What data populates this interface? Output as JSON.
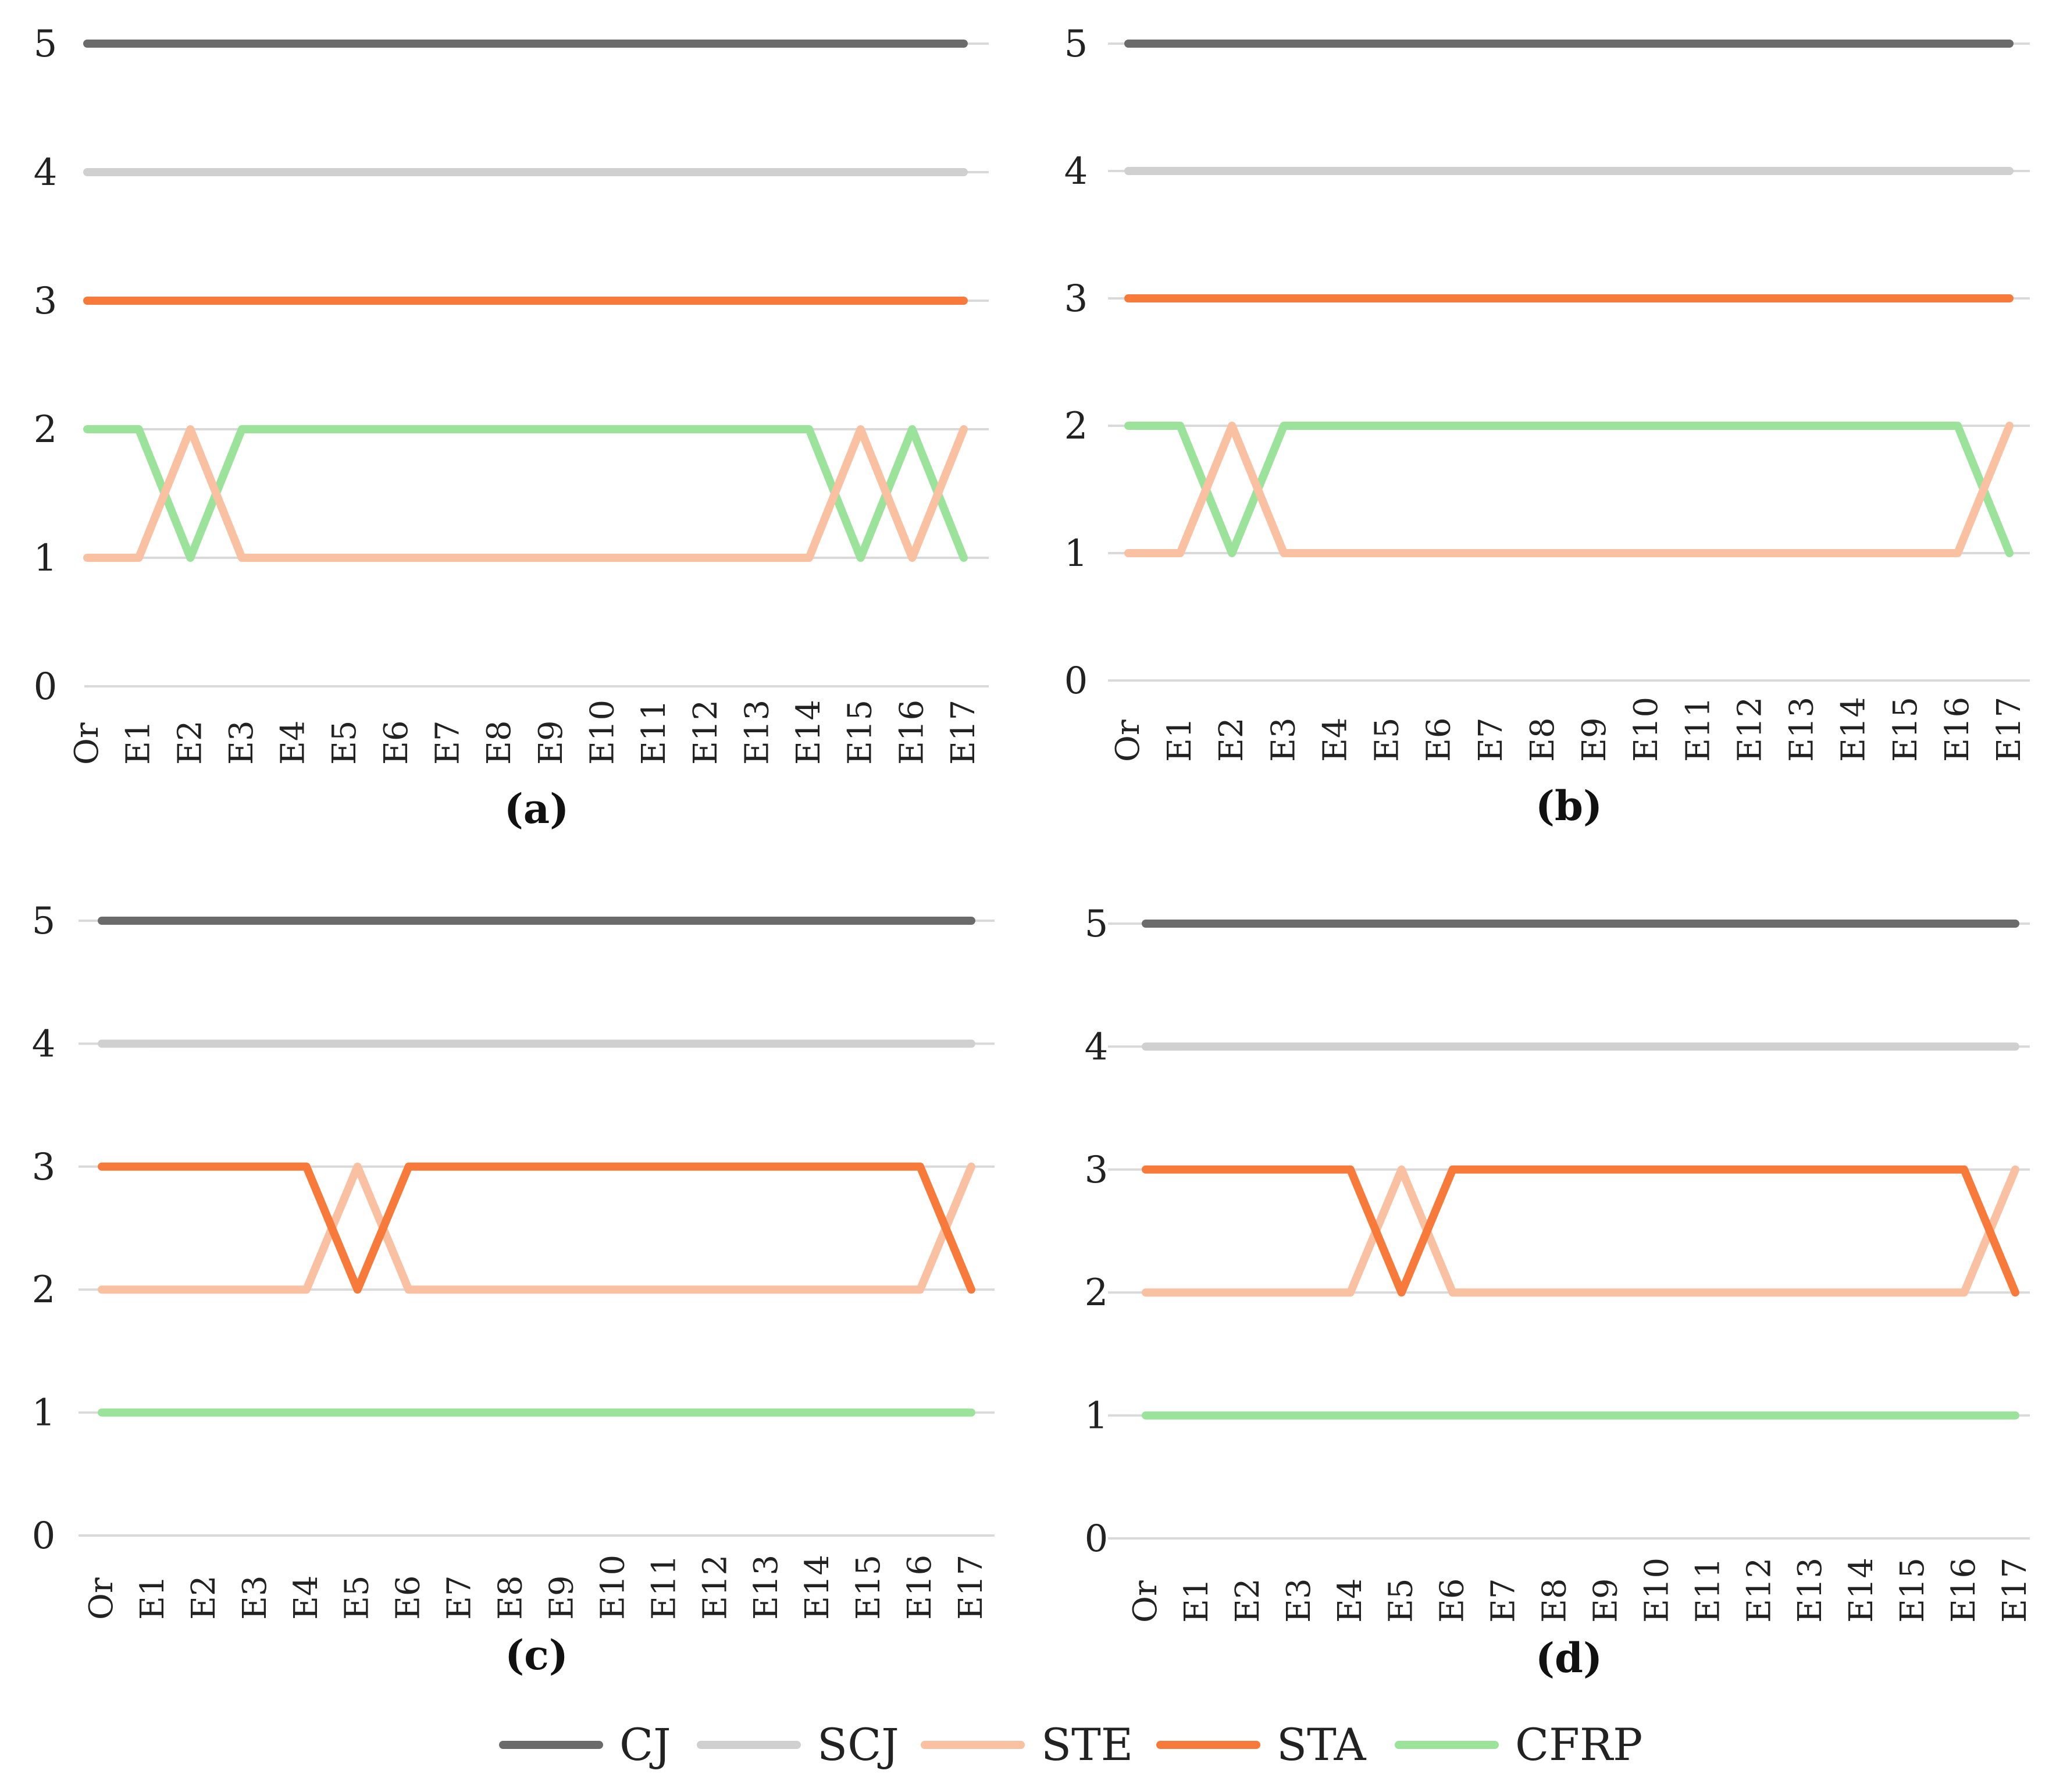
{
  "chart_data": [
    {
      "type": "line",
      "title": "",
      "caption": "(a)",
      "categories": [
        "Or",
        "E1",
        "E2",
        "E3",
        "E4",
        "E5",
        "E6",
        "E7",
        "E8",
        "E9",
        "E10",
        "E11",
        "E12",
        "E13",
        "E14",
        "E15",
        "E16",
        "E17"
      ],
      "ylim": [
        0,
        5
      ],
      "yticks": [
        0,
        1,
        2,
        3,
        4,
        5
      ],
      "grid": true,
      "series": [
        {
          "name": "CJ",
          "values": [
            5,
            5,
            5,
            5,
            5,
            5,
            5,
            5,
            5,
            5,
            5,
            5,
            5,
            5,
            5,
            5,
            5,
            5
          ]
        },
        {
          "name": "SCJ",
          "values": [
            4,
            4,
            4,
            4,
            4,
            4,
            4,
            4,
            4,
            4,
            4,
            4,
            4,
            4,
            4,
            4,
            4,
            4
          ]
        },
        {
          "name": "STE",
          "values": [
            1,
            1,
            2,
            1,
            1,
            1,
            1,
            1,
            1,
            1,
            1,
            1,
            1,
            1,
            1,
            2,
            1,
            2
          ]
        },
        {
          "name": "STA",
          "values": [
            3,
            3,
            3,
            3,
            3,
            3,
            3,
            3,
            3,
            3,
            3,
            3,
            3,
            3,
            3,
            3,
            3,
            3
          ]
        },
        {
          "name": "CFRP",
          "values": [
            2,
            2,
            1,
            2,
            2,
            2,
            2,
            2,
            2,
            2,
            2,
            2,
            2,
            2,
            2,
            1,
            2,
            1
          ]
        }
      ]
    },
    {
      "type": "line",
      "title": "",
      "caption": "(b)",
      "categories": [
        "Or",
        "E1",
        "E2",
        "E3",
        "E4",
        "E5",
        "E6",
        "E7",
        "E8",
        "E9",
        "E10",
        "E11",
        "E12",
        "E13",
        "E14",
        "E15",
        "E16",
        "E17"
      ],
      "ylim": [
        0,
        5
      ],
      "yticks": [
        0,
        1,
        2,
        3,
        4,
        5
      ],
      "grid": true,
      "series": [
        {
          "name": "CJ",
          "values": [
            5,
            5,
            5,
            5,
            5,
            5,
            5,
            5,
            5,
            5,
            5,
            5,
            5,
            5,
            5,
            5,
            5,
            5
          ]
        },
        {
          "name": "SCJ",
          "values": [
            4,
            4,
            4,
            4,
            4,
            4,
            4,
            4,
            4,
            4,
            4,
            4,
            4,
            4,
            4,
            4,
            4,
            4
          ]
        },
        {
          "name": "STE",
          "values": [
            1,
            1,
            2,
            1,
            1,
            1,
            1,
            1,
            1,
            1,
            1,
            1,
            1,
            1,
            1,
            1,
            1,
            2
          ]
        },
        {
          "name": "STA",
          "values": [
            3,
            3,
            3,
            3,
            3,
            3,
            3,
            3,
            3,
            3,
            3,
            3,
            3,
            3,
            3,
            3,
            3,
            3
          ]
        },
        {
          "name": "CFRP",
          "values": [
            2,
            2,
            1,
            2,
            2,
            2,
            2,
            2,
            2,
            2,
            2,
            2,
            2,
            2,
            2,
            2,
            2,
            1
          ]
        }
      ]
    },
    {
      "type": "line",
      "title": "",
      "caption": "(c)",
      "categories": [
        "Or",
        "E1",
        "E2",
        "E3",
        "E4",
        "E5",
        "E6",
        "E7",
        "E8",
        "E9",
        "E10",
        "E11",
        "E12",
        "E13",
        "E14",
        "E15",
        "E16",
        "E17"
      ],
      "ylim": [
        0,
        5
      ],
      "yticks": [
        0,
        1,
        2,
        3,
        4,
        5
      ],
      "grid": true,
      "series": [
        {
          "name": "CJ",
          "values": [
            5,
            5,
            5,
            5,
            5,
            5,
            5,
            5,
            5,
            5,
            5,
            5,
            5,
            5,
            5,
            5,
            5,
            5
          ]
        },
        {
          "name": "SCJ",
          "values": [
            4,
            4,
            4,
            4,
            4,
            4,
            4,
            4,
            4,
            4,
            4,
            4,
            4,
            4,
            4,
            4,
            4,
            4
          ]
        },
        {
          "name": "STE",
          "values": [
            2,
            2,
            2,
            2,
            2,
            3,
            2,
            2,
            2,
            2,
            2,
            2,
            2,
            2,
            2,
            2,
            2,
            3
          ]
        },
        {
          "name": "STA",
          "values": [
            3,
            3,
            3,
            3,
            3,
            2,
            3,
            3,
            3,
            3,
            3,
            3,
            3,
            3,
            3,
            3,
            3,
            2
          ]
        },
        {
          "name": "CFRP",
          "values": [
            1,
            1,
            1,
            1,
            1,
            1,
            1,
            1,
            1,
            1,
            1,
            1,
            1,
            1,
            1,
            1,
            1,
            1
          ]
        }
      ]
    },
    {
      "type": "line",
      "title": "",
      "caption": "(d)",
      "categories": [
        "Or",
        "E1",
        "E2",
        "E3",
        "E4",
        "E5",
        "E6",
        "E7",
        "E8",
        "E9",
        "E10",
        "E11",
        "E12",
        "E13",
        "E14",
        "E15",
        "E16",
        "E17"
      ],
      "ylim": [
        0,
        5
      ],
      "yticks": [
        0,
        1,
        2,
        3,
        4,
        5
      ],
      "grid": true,
      "series": [
        {
          "name": "CJ",
          "values": [
            5,
            5,
            5,
            5,
            5,
            5,
            5,
            5,
            5,
            5,
            5,
            5,
            5,
            5,
            5,
            5,
            5,
            5
          ]
        },
        {
          "name": "SCJ",
          "values": [
            4,
            4,
            4,
            4,
            4,
            4,
            4,
            4,
            4,
            4,
            4,
            4,
            4,
            4,
            4,
            4,
            4,
            4
          ]
        },
        {
          "name": "STE",
          "values": [
            2,
            2,
            2,
            2,
            2,
            3,
            2,
            2,
            2,
            2,
            2,
            2,
            2,
            2,
            2,
            2,
            2,
            3
          ]
        },
        {
          "name": "STA",
          "values": [
            3,
            3,
            3,
            3,
            3,
            2,
            3,
            3,
            3,
            3,
            3,
            3,
            3,
            3,
            3,
            3,
            3,
            2
          ]
        },
        {
          "name": "CFRP",
          "values": [
            1,
            1,
            1,
            1,
            1,
            1,
            1,
            1,
            1,
            1,
            1,
            1,
            1,
            1,
            1,
            1,
            1,
            1
          ]
        }
      ]
    }
  ],
  "legend": {
    "position": "bottom-center",
    "items": [
      {
        "name": "CJ",
        "color": "#6b6b6b"
      },
      {
        "name": "SCJ",
        "color": "#d0d0d0"
      },
      {
        "name": "STE",
        "color": "#f9c0a2"
      },
      {
        "name": "STA",
        "color": "#f77a3a"
      },
      {
        "name": "CFRP",
        "color": "#9be39a"
      }
    ]
  }
}
